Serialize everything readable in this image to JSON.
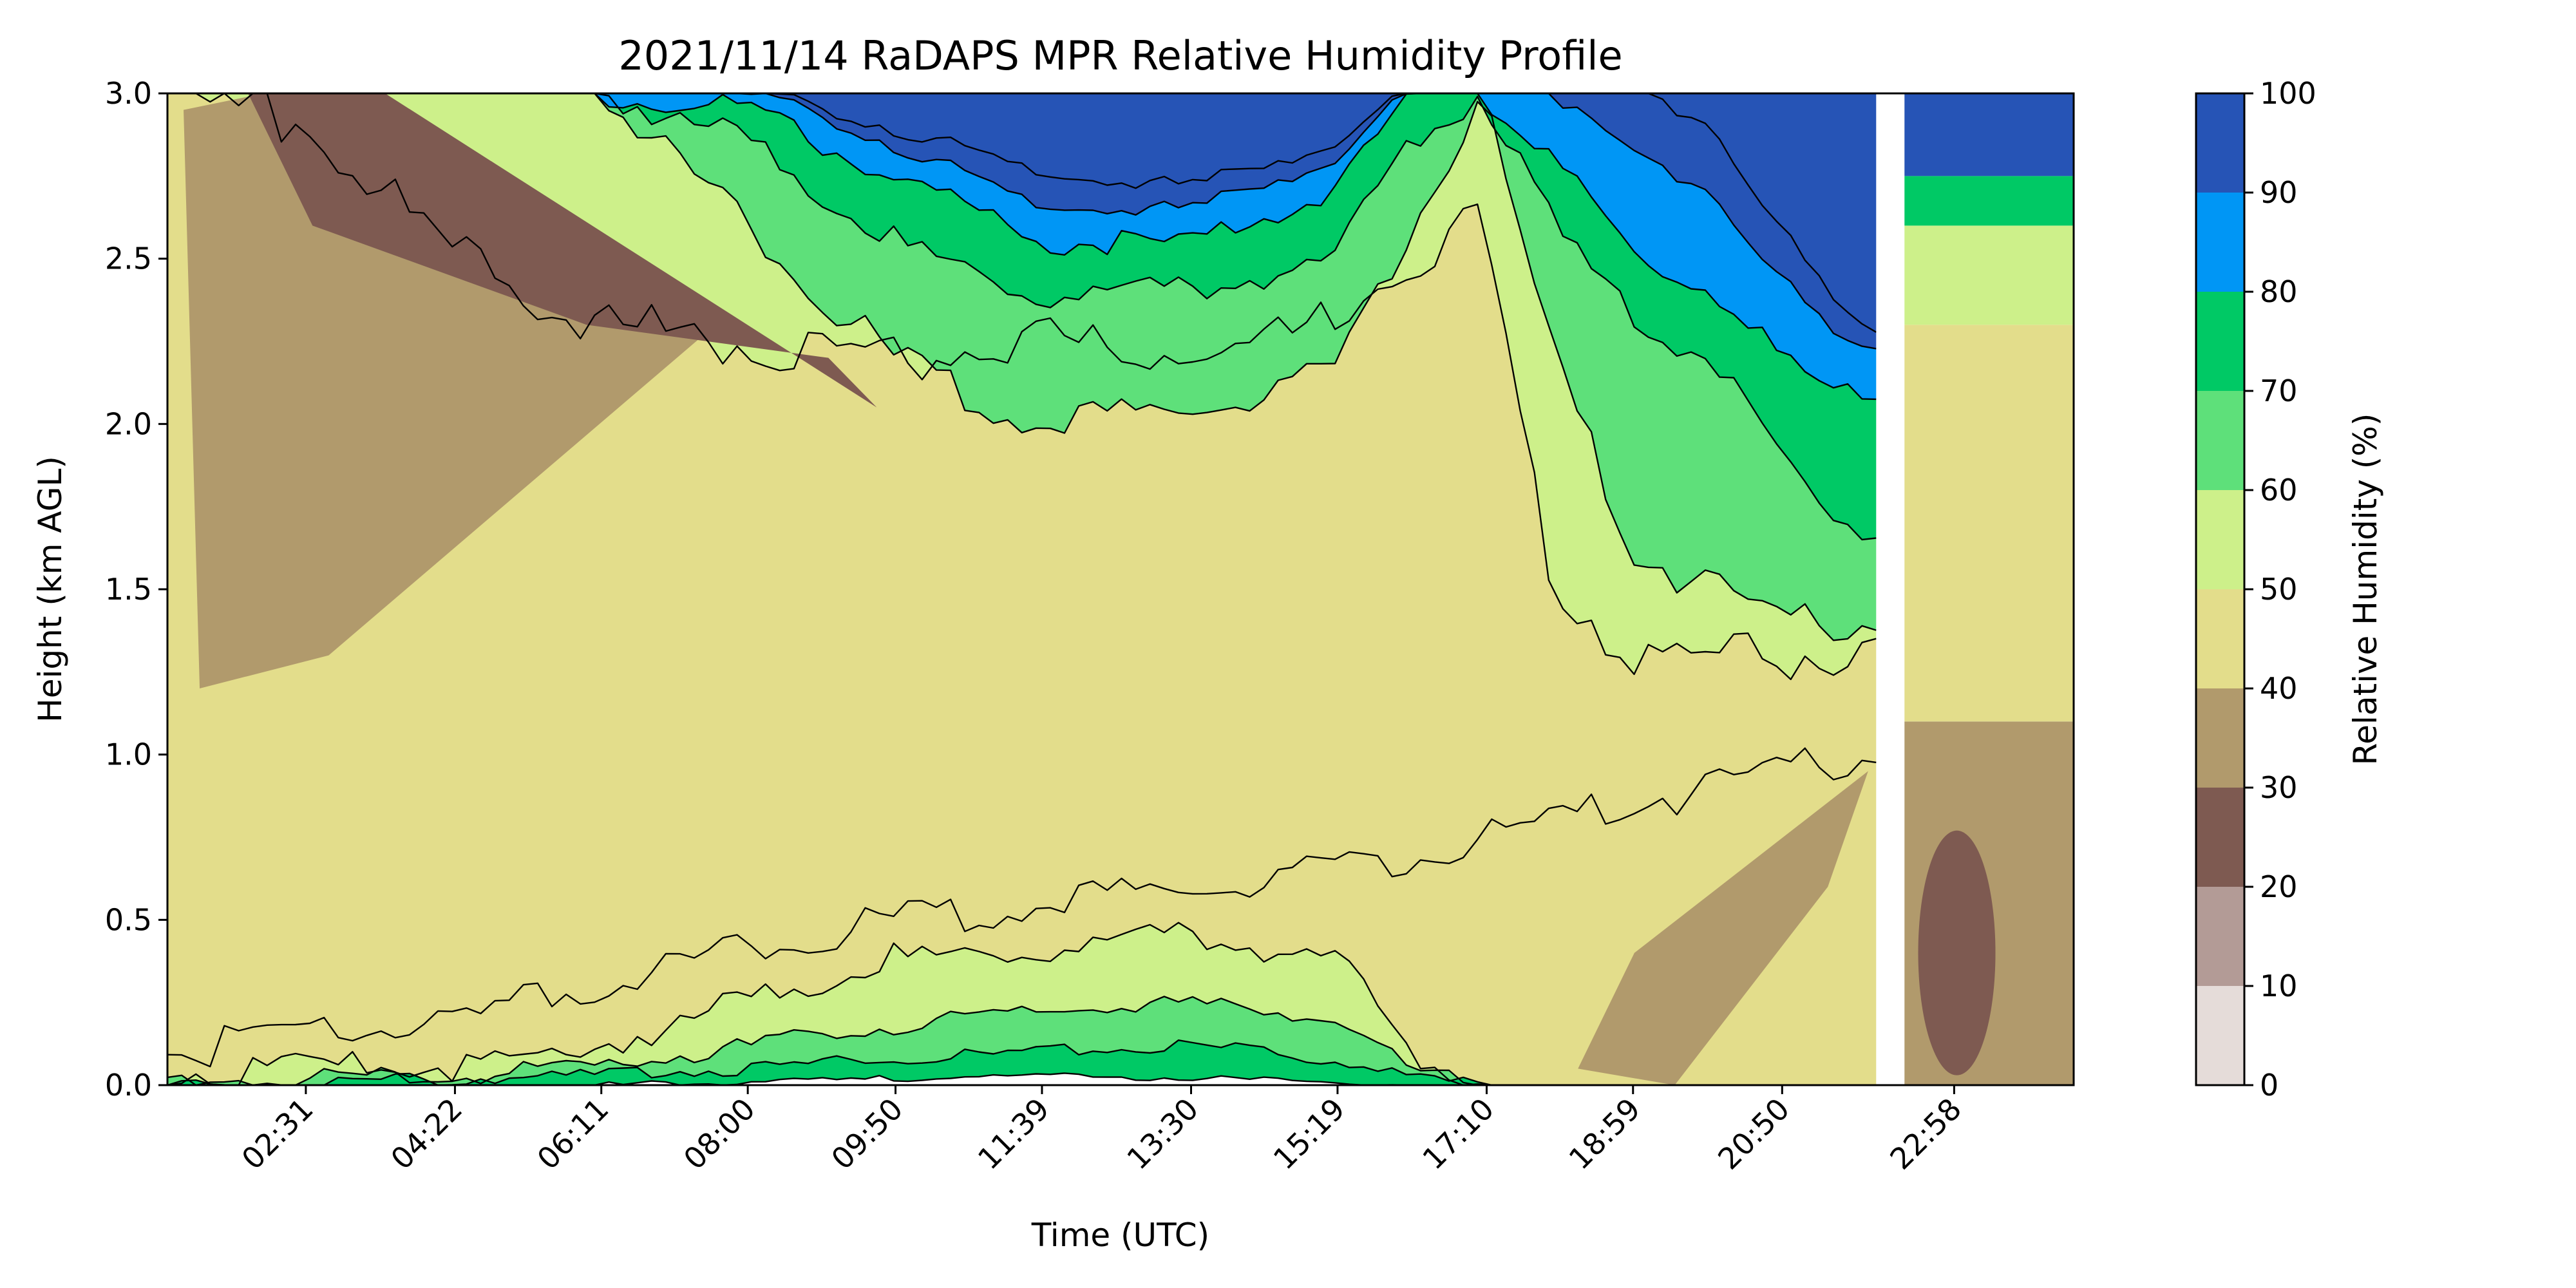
{
  "chart_data": {
    "type": "contourf",
    "title": "2021/11/14 RaDAPS MPR Relative Humidity Profile",
    "xlabel": "Time (UTC)",
    "ylabel": "Height (km AGL)",
    "ylim": [
      0.0,
      3.0
    ],
    "y_ticks": [
      "0.0",
      "0.5",
      "1.0",
      "1.5",
      "2.0",
      "2.5",
      "3.0"
    ],
    "x_ticks": [
      "02:31",
      "04:22",
      "06:11",
      "08:00",
      "09:50",
      "11:39",
      "13:30",
      "15:19",
      "17:10",
      "18:59",
      "20:50",
      "22:58"
    ],
    "x_tick_hours": [
      2.517,
      4.367,
      6.183,
      8.0,
      9.833,
      11.65,
      13.5,
      15.317,
      17.167,
      18.983,
      20.833,
      22.967
    ],
    "x_range_hours": [
      0.8,
      24.45
    ],
    "data_gap_hours": [
      22.0,
      22.35
    ],
    "colorbar": {
      "label": "Relative Humidity (%)",
      "levels": [
        0,
        10,
        20,
        30,
        40,
        50,
        60,
        70,
        80,
        90,
        100
      ],
      "tick_labels": [
        "0",
        "10",
        "20",
        "30",
        "40",
        "50",
        "60",
        "70",
        "80",
        "90",
        "100"
      ],
      "colors": [
        "#e5dcd9",
        "#b39b96",
        "#7e5a51",
        "#b19a6c",
        "#e3dd8b",
        "#cdf08a",
        "#5ee07a",
        "#00c965",
        "#0096f5",
        "#2654b6"
      ]
    },
    "time_columns_hours": [
      0.8,
      2.5,
      4.4,
      6.2,
      8.0,
      9.8,
      11.6,
      13.5,
      15.3,
      16.2,
      17.1,
      18.0,
      19.0,
      20.0,
      20.8,
      21.5,
      22.0
    ],
    "late_columns_hours": [
      22.35,
      23.0,
      23.6,
      24.45
    ],
    "contour_heights_km": {
      "rh_10": [
        0.0,
        0.0,
        0.0,
        0.0,
        0.0,
        0.0,
        0.0,
        0.0,
        0.0,
        0.0,
        0.0,
        0.0,
        0.0,
        0.0,
        0.0,
        0.0,
        0.0
      ],
      "rh_40": [
        0.1,
        0.15,
        0.2,
        0.3,
        0.42,
        0.5,
        0.55,
        0.6,
        0.65,
        0.7,
        0.75,
        0.8,
        0.85,
        0.9,
        0.95,
        0.98,
        1.0
      ],
      "rh_50": [
        0.03,
        0.05,
        0.06,
        0.12,
        0.25,
        0.38,
        0.42,
        0.45,
        0.38,
        0.1,
        0.0,
        0.0,
        0.0,
        0.0,
        0.0,
        0.0,
        0.0
      ],
      "rh_60": [
        0.01,
        0.02,
        0.03,
        0.06,
        0.12,
        0.18,
        0.22,
        0.25,
        0.2,
        0.05,
        0.0,
        0.0,
        0.0,
        0.0,
        0.0,
        0.0,
        0.0
      ],
      "rh_70": [
        0.0,
        0.01,
        0.02,
        0.03,
        0.05,
        0.08,
        0.1,
        0.12,
        0.08,
        0.02,
        0.0,
        0.0,
        0.0,
        0.0,
        0.0,
        0.0,
        0.0
      ],
      "rh_80": [
        0.0,
        0.0,
        0.0,
        0.0,
        0.01,
        0.02,
        0.03,
        0.02,
        0.01,
        0.0,
        0.0,
        0.0,
        0.0,
        0.0,
        0.0,
        0.0,
        0.0
      ],
      "upper_40": [
        3.0,
        2.9,
        2.5,
        2.3,
        2.25,
        2.2,
        2.25,
        2.2,
        2.3,
        2.5,
        2.6,
        1.5,
        1.3,
        1.3,
        1.3,
        1.3,
        1.3
      ],
      "upper_50": [
        3.0,
        3.0,
        3.0,
        3.0,
        2.6,
        2.2,
        2.0,
        2.05,
        2.15,
        2.6,
        3.0,
        2.2,
        1.6,
        1.5,
        1.4,
        1.4,
        1.4
      ],
      "upper_60": [
        3.0,
        3.0,
        3.0,
        3.0,
        2.85,
        2.55,
        2.4,
        2.4,
        2.5,
        2.85,
        3.0,
        2.6,
        2.3,
        2.2,
        1.9,
        1.7,
        1.7
      ],
      "upper_70": [
        3.0,
        3.0,
        3.0,
        3.0,
        2.95,
        2.75,
        2.55,
        2.55,
        2.7,
        3.0,
        3.0,
        2.8,
        2.5,
        2.4,
        2.2,
        2.1,
        2.1
      ],
      "upper_80": [
        3.0,
        3.0,
        3.0,
        3.0,
        3.0,
        2.85,
        2.65,
        2.65,
        2.8,
        3.0,
        3.0,
        3.0,
        2.8,
        2.7,
        2.45,
        2.25,
        2.2
      ],
      "upper_90": [
        3.0,
        3.0,
        3.0,
        3.0,
        3.0,
        2.9,
        2.75,
        2.72,
        2.85,
        3.0,
        3.0,
        3.0,
        3.0,
        2.9,
        2.6,
        2.35,
        2.25
      ]
    }
  }
}
